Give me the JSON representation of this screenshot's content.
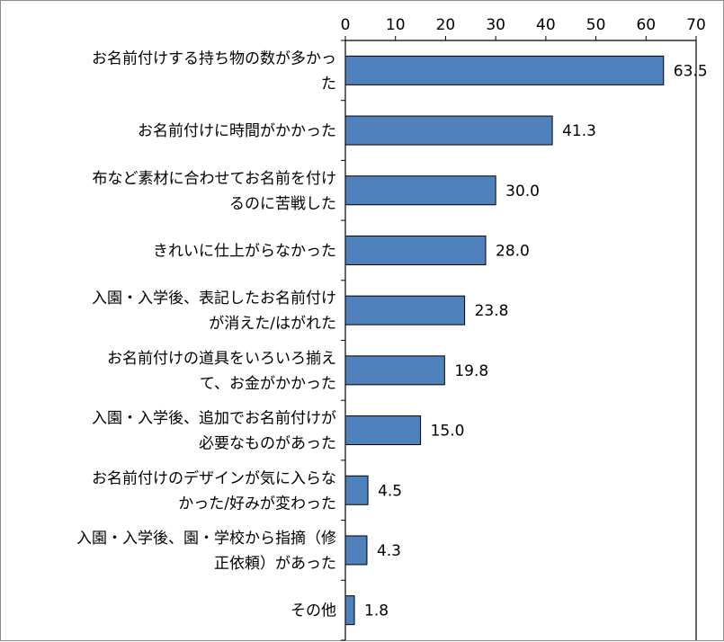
{
  "chart_data": {
    "type": "bar",
    "orientation": "horizontal",
    "title": "",
    "xlabel": "",
    "ylabel": "",
    "xlim": [
      0,
      70
    ],
    "ticks": [
      0,
      10,
      20,
      30,
      40,
      50,
      60,
      70
    ],
    "tick_position": "top",
    "grid": false,
    "legend": "none",
    "bar_color": "#4F81BD",
    "bar_edge_color": "#000000",
    "categories": [
      [
        "お名前付けする持ち物の数が多かっ",
        "た"
      ],
      [
        "お名前付けに時間がかかった"
      ],
      [
        "布など素材に合わせてお名前を付け",
        "るのに苦戦した"
      ],
      [
        "きれいに仕上がらなかった"
      ],
      [
        "入園・入学後、表記したお名前付け",
        "が消えた/はがれた"
      ],
      [
        "お名前付けの道具をいろいろ揃え",
        "て、お金がかかった"
      ],
      [
        "入園・入学後、追加でお名前付けが",
        "必要なものがあった"
      ],
      [
        "お名前付けのデザインが気に入らな",
        "かった/好みが変わった"
      ],
      [
        "入園・入学後、園・学校から指摘（修",
        "正依頼）があった"
      ],
      [
        "その他"
      ]
    ],
    "values": [
      63.5,
      41.3,
      30.0,
      28.0,
      23.8,
      19.8,
      15.0,
      4.5,
      4.3,
      1.8
    ],
    "value_labels": [
      "63.5",
      "41.3",
      "30.0",
      "28.0",
      "23.8",
      "19.8",
      "15.0",
      "4.5",
      "4.3",
      "1.8"
    ]
  }
}
